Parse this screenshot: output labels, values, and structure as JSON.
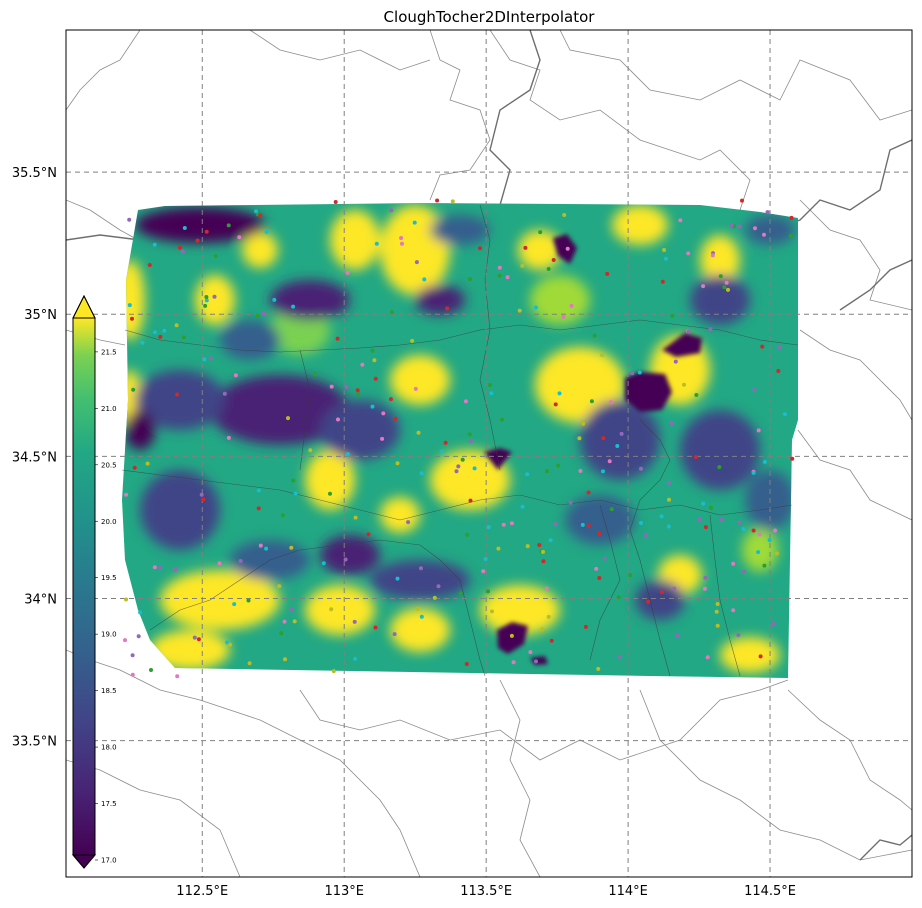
{
  "title": "CloughTocher2DInterpolator",
  "map": {
    "lon_range": [
      112.02,
      115.0
    ],
    "lat_range": [
      33.02,
      36.0
    ],
    "grid": true,
    "lon_ticks": [
      {
        "value": 112.5,
        "label": "112.5°E"
      },
      {
        "value": 113.0,
        "label": "113°E"
      },
      {
        "value": 113.5,
        "label": "113.5°E"
      },
      {
        "value": 114.0,
        "label": "114°E"
      },
      {
        "value": 114.5,
        "label": "114.5°E"
      }
    ],
    "lat_ticks": [
      {
        "value": 35.5,
        "label": "35.5°N"
      },
      {
        "value": 35.0,
        "label": "35°N"
      },
      {
        "value": 34.5,
        "label": "34.5°N"
      },
      {
        "value": 34.0,
        "label": "34°N"
      },
      {
        "value": 33.5,
        "label": "33.5°N"
      }
    ],
    "interpolated_extent": {
      "lon": [
        112.2,
        114.6
      ],
      "lat": [
        33.72,
        35.38
      ]
    },
    "colormap": "viridis",
    "boundaries": "gray administrative borders"
  },
  "colorbar": {
    "placement": "left-inside",
    "min": 17.0,
    "max": 21.8,
    "extend": "both",
    "ticks": [
      {
        "value": 17.0,
        "label": "17.0"
      },
      {
        "value": 17.5,
        "label": "17.5"
      },
      {
        "value": 18.0,
        "label": "18.0"
      },
      {
        "value": 18.5,
        "label": "18.5"
      },
      {
        "value": 19.0,
        "label": "19.0"
      },
      {
        "value": 19.5,
        "label": "19.5"
      },
      {
        "value": 20.0,
        "label": "20.0"
      },
      {
        "value": 20.5,
        "label": "20.5"
      },
      {
        "value": 21.0,
        "label": "21.0"
      },
      {
        "value": 21.5,
        "label": "21.5"
      }
    ]
  },
  "station_colors": [
    "#d62728",
    "#e377c2",
    "#2ca02c",
    "#17becf",
    "#9467bd",
    "#bcbd22"
  ]
}
